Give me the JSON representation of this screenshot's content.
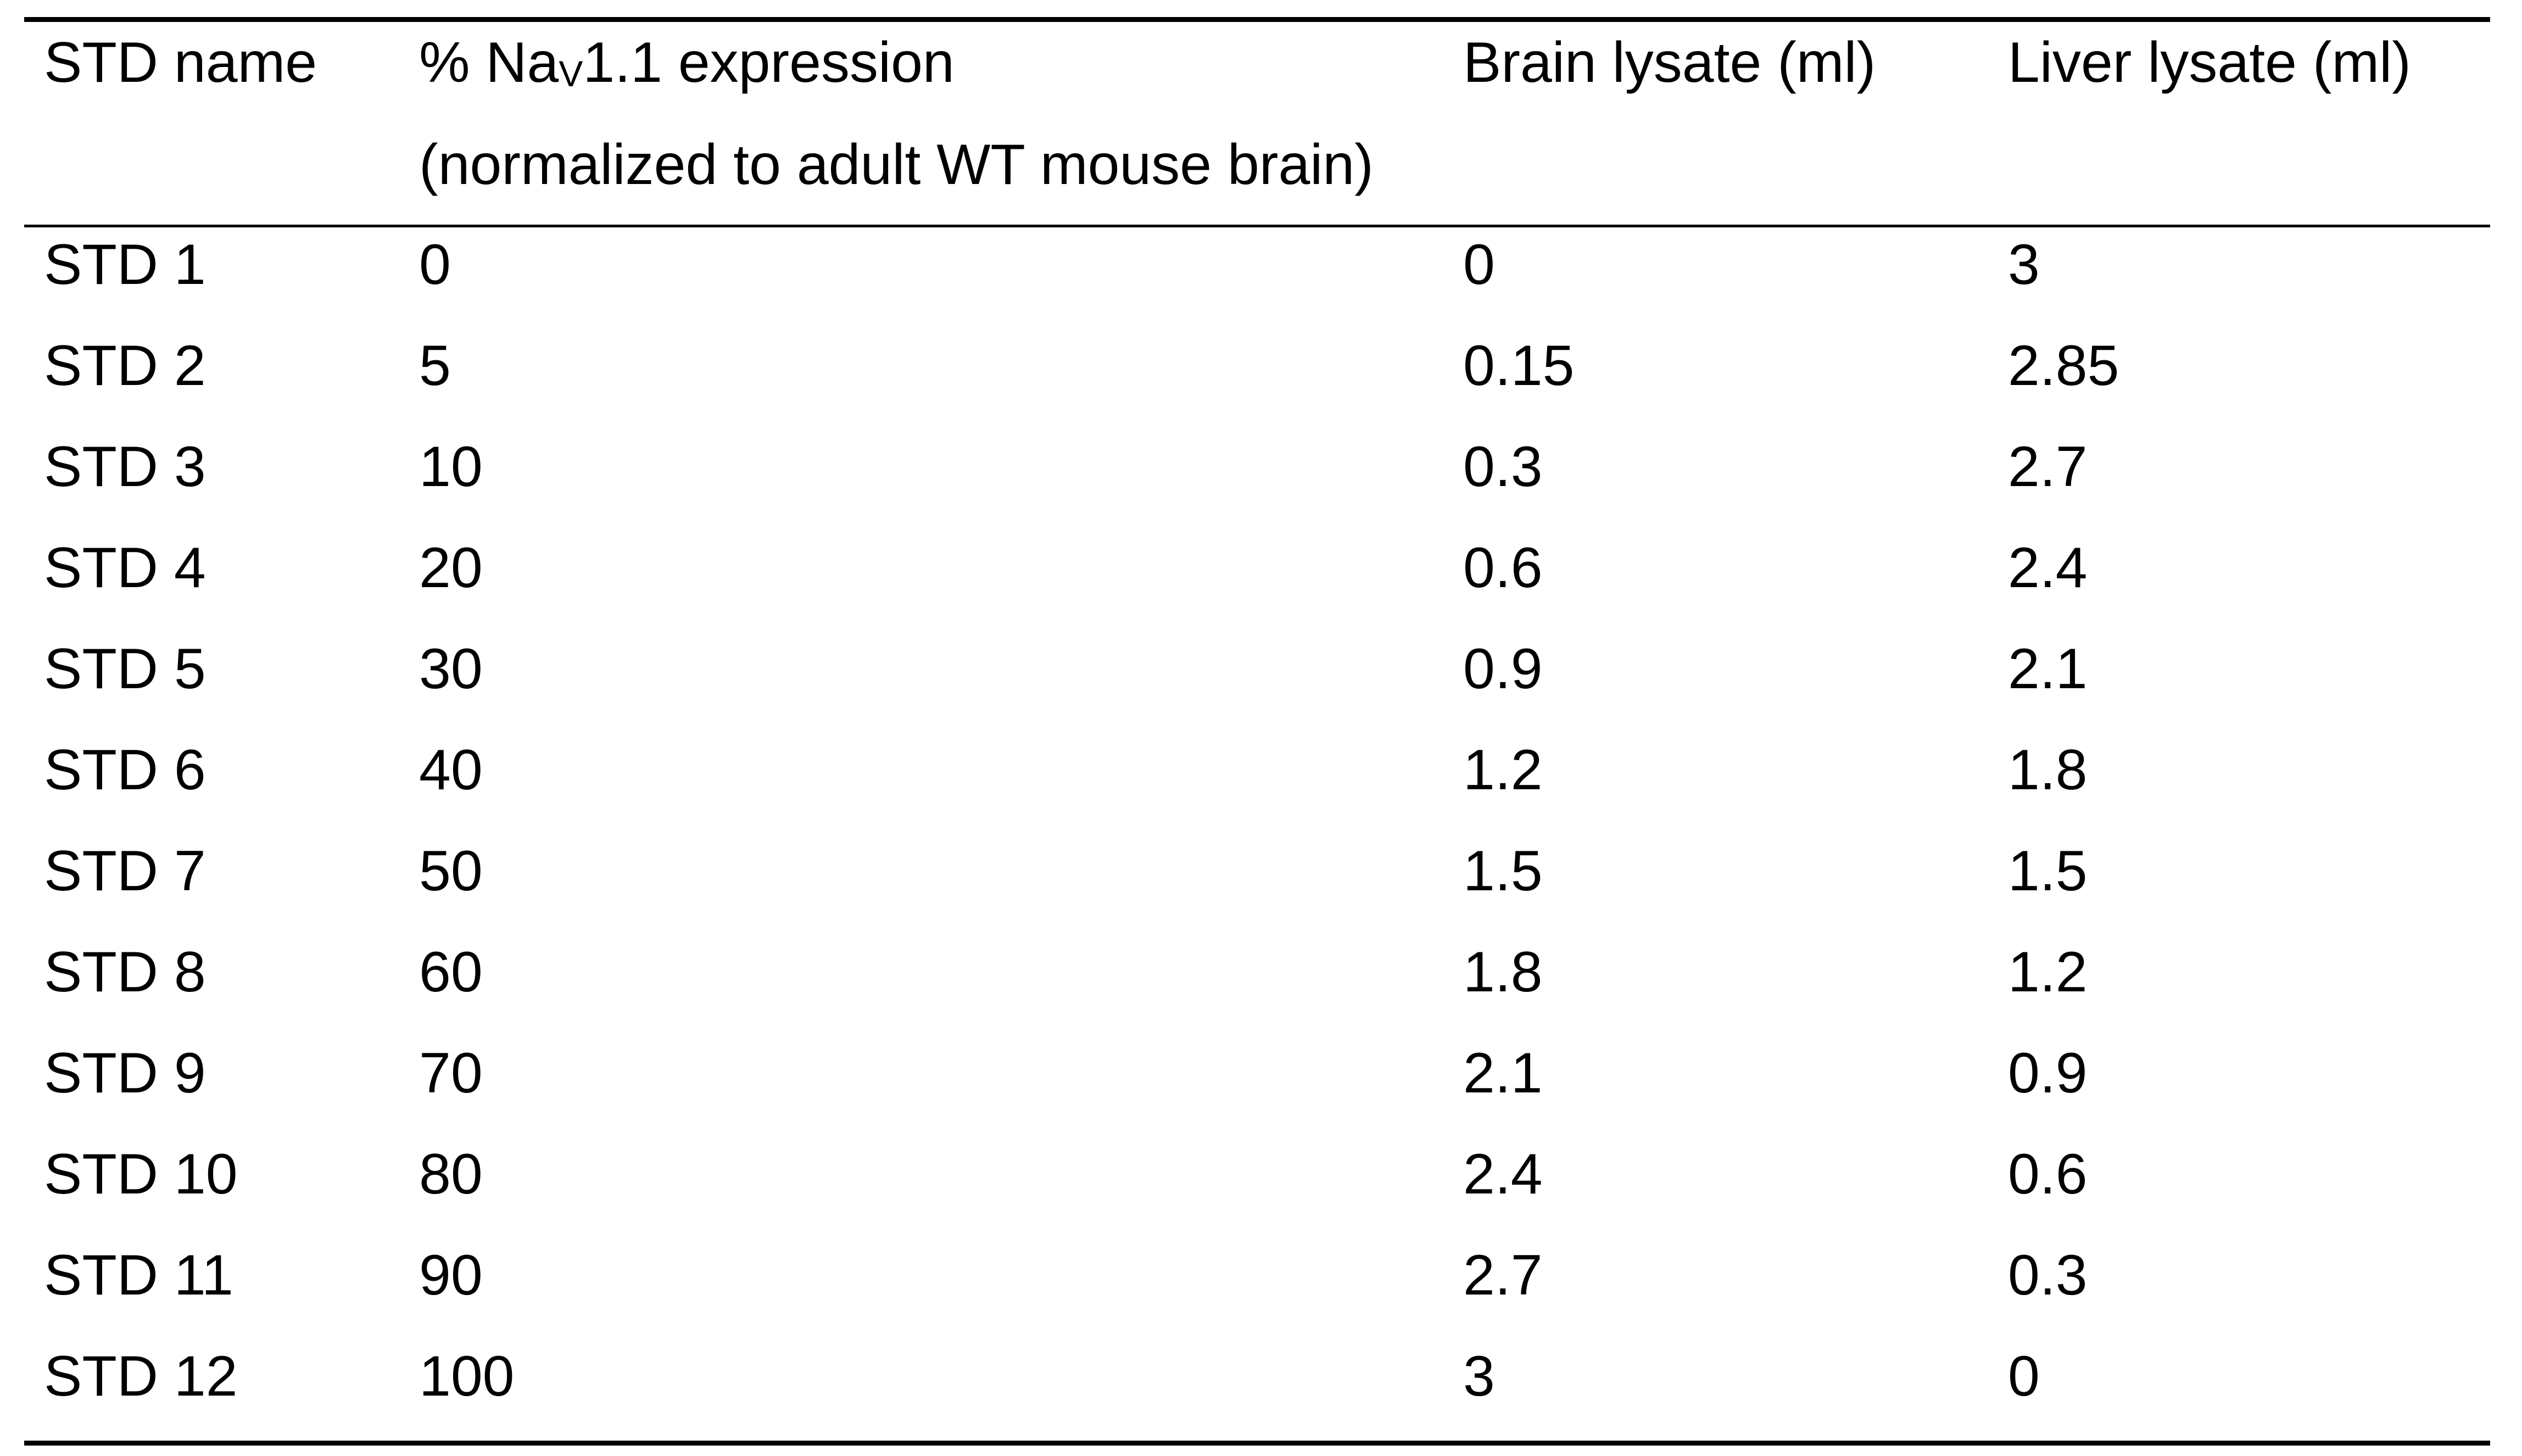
{
  "table": {
    "headers": {
      "col1": "STD name",
      "col2_prefix": "% Na",
      "col2_sub": "V",
      "col2_suffix": "1.1 expression",
      "col2_line2": "(normalized to adult WT mouse brain)",
      "col3": "Brain lysate (ml)",
      "col4": "Liver lysate (ml)"
    },
    "rows": [
      [
        "STD 1",
        "0",
        "0",
        "3"
      ],
      [
        "STD 2",
        "5",
        "0.15",
        "2.85"
      ],
      [
        "STD 3",
        "10",
        "0.3",
        "2.7"
      ],
      [
        "STD 4",
        "20",
        "0.6",
        "2.4"
      ],
      [
        "STD 5",
        "30",
        "0.9",
        "2.1"
      ],
      [
        "STD 6",
        "40",
        "1.2",
        "1.8"
      ],
      [
        "STD 7",
        "50",
        "1.5",
        "1.5"
      ],
      [
        "STD 8",
        "60",
        "1.8",
        "1.2"
      ],
      [
        "STD 9",
        "70",
        "2.1",
        "0.9"
      ],
      [
        "STD 10",
        "80",
        "2.4",
        "0.6"
      ],
      [
        "STD 11",
        "90",
        "2.7",
        "0.3"
      ],
      [
        "STD 12",
        "100",
        "3",
        "0"
      ]
    ]
  }
}
